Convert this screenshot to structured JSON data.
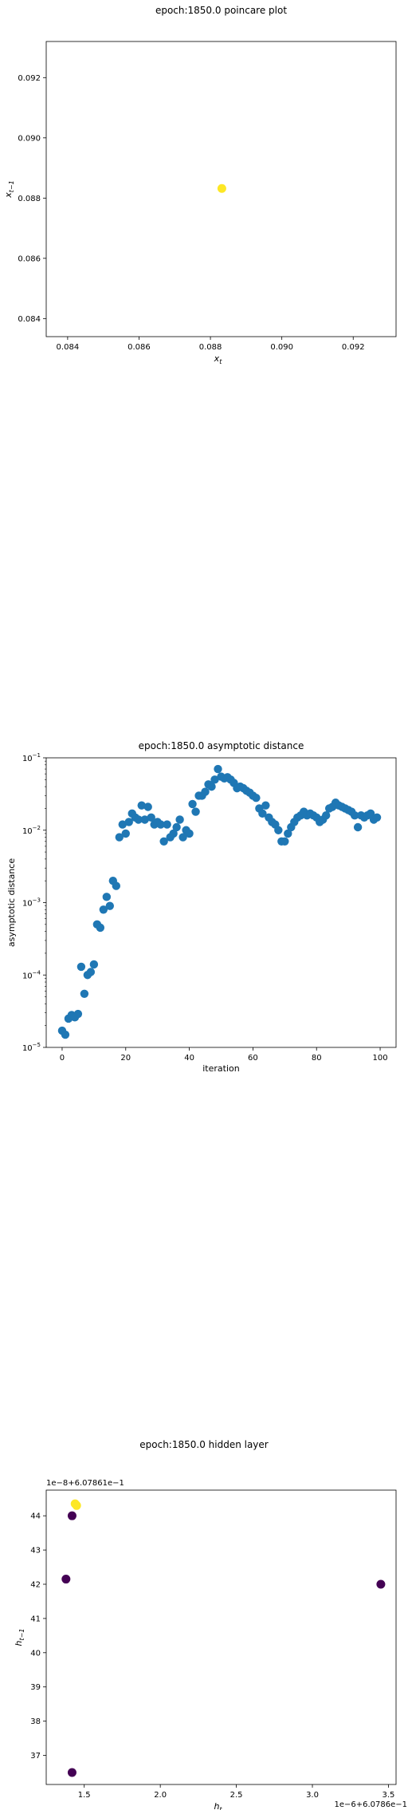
{
  "chart_data": [
    {
      "type": "scatter",
      "title": "epoch:1850.0 poincare plot",
      "xlabel": "x_t",
      "ylabel": "x_{t-1}",
      "xlim": [
        0.0834,
        0.0932
      ],
      "ylim": [
        0.0834,
        0.0932
      ],
      "xticks": [
        0.084,
        0.086,
        0.088,
        0.09,
        0.092
      ],
      "yticks": [
        0.084,
        0.086,
        0.088,
        0.09,
        0.092
      ],
      "xticklabels": [
        "0.084",
        "0.086",
        "0.088",
        "0.090",
        "0.092"
      ],
      "yticklabels": [
        "0.084",
        "0.086",
        "0.088",
        "0.090",
        "0.092"
      ],
      "grid": false,
      "points": [
        {
          "x": 0.08832,
          "y": 0.08832,
          "color": "#fde725"
        }
      ]
    },
    {
      "type": "scatter",
      "title": "epoch:1850.0 asymptotic distance",
      "xlabel": "iteration",
      "ylabel": "asymptotic distance",
      "yscale": "log",
      "xlim": [
        -5,
        105
      ],
      "ylim": [
        1e-05,
        0.1
      ],
      "xticks": [
        0,
        20,
        40,
        60,
        80,
        100
      ],
      "xticklabels": [
        "0",
        "20",
        "40",
        "60",
        "80",
        "100"
      ],
      "yticks": [
        1e-05,
        0.0001,
        0.001,
        0.01,
        0.1
      ],
      "yticklabels": [
        [
          "10",
          "−5"
        ],
        [
          "10",
          "−4"
        ],
        [
          "10",
          "−3"
        ],
        [
          "10",
          "−2"
        ],
        [
          "10",
          "−1"
        ]
      ],
      "grid": false,
      "color": "#1f77b4",
      "x": [
        0,
        1,
        2,
        3,
        4,
        5,
        6,
        7,
        8,
        9,
        10,
        11,
        12,
        13,
        14,
        15,
        16,
        17,
        18,
        19,
        20,
        21,
        22,
        23,
        24,
        25,
        26,
        27,
        28,
        29,
        30,
        31,
        32,
        33,
        34,
        35,
        36,
        37,
        38,
        39,
        40,
        41,
        42,
        43,
        44,
        45,
        46,
        47,
        48,
        49,
        50,
        51,
        52,
        53,
        54,
        55,
        56,
        57,
        58,
        59,
        60,
        61,
        62,
        63,
        64,
        65,
        66,
        67,
        68,
        69,
        70,
        71,
        72,
        73,
        74,
        75,
        76,
        77,
        78,
        79,
        80,
        81,
        82,
        83,
        84,
        85,
        86,
        87,
        88,
        89,
        90,
        91,
        92,
        93,
        94,
        95,
        96,
        97,
        98,
        99
      ],
      "y": [
        1.7e-05,
        1.5e-05,
        2.5e-05,
        2.8e-05,
        2.6e-05,
        2.9e-05,
        0.00013,
        5.5e-05,
        0.0001,
        0.00011,
        0.00014,
        0.0005,
        0.00045,
        0.0008,
        0.0012,
        0.0009,
        0.002,
        0.0017,
        0.008,
        0.012,
        0.009,
        0.013,
        0.017,
        0.015,
        0.014,
        0.022,
        0.014,
        0.021,
        0.015,
        0.012,
        0.013,
        0.012,
        0.007,
        0.012,
        0.008,
        0.009,
        0.011,
        0.014,
        0.008,
        0.01,
        0.009,
        0.023,
        0.018,
        0.03,
        0.03,
        0.034,
        0.043,
        0.04,
        0.05,
        0.07,
        0.055,
        0.052,
        0.054,
        0.05,
        0.045,
        0.038,
        0.04,
        0.038,
        0.035,
        0.033,
        0.03,
        0.028,
        0.02,
        0.017,
        0.022,
        0.015,
        0.013,
        0.012,
        0.01,
        0.007,
        0.007,
        0.009,
        0.011,
        0.013,
        0.015,
        0.016,
        0.018,
        0.016,
        0.017,
        0.016,
        0.015,
        0.013,
        0.014,
        0.016,
        0.02,
        0.021,
        0.024,
        0.022,
        0.021,
        0.02,
        0.019,
        0.018,
        0.016,
        0.011,
        0.016,
        0.015,
        0.016,
        0.017,
        0.014,
        0.015
      ]
    },
    {
      "type": "scatter",
      "title": "epoch:1850.0 hidden layer",
      "xlabel": "h_t",
      "ylabel": "h_{t-1}",
      "x_offset_label": "1e−6+6.0786e−1",
      "y_offset_label": "1e−8+6.07861e−1",
      "xlim": [
        1.25,
        3.55
      ],
      "ylim": [
        36.15,
        44.75
      ],
      "xticks": [
        1.5,
        2.0,
        2.5,
        3.0,
        3.5
      ],
      "xticklabels": [
        "1.5",
        "2.0",
        "2.5",
        "3.0",
        "3.5"
      ],
      "yticks": [
        37,
        38,
        39,
        40,
        41,
        42,
        43,
        44
      ],
      "yticklabels": [
        "37",
        "38",
        "39",
        "40",
        "41",
        "42",
        "43",
        "44"
      ],
      "grid": false,
      "points": [
        {
          "x": 1.38,
          "y": 42.15,
          "color": "#440154"
        },
        {
          "x": 1.42,
          "y": 44.0,
          "color": "#440154"
        },
        {
          "x": 1.42,
          "y": 36.5,
          "color": "#440154"
        },
        {
          "x": 3.45,
          "y": 42.0,
          "color": "#440154"
        },
        {
          "x": 1.45,
          "y": 44.3,
          "color": "#fde725"
        },
        {
          "x": 1.44,
          "y": 44.35,
          "color": "#fde725"
        }
      ]
    }
  ]
}
